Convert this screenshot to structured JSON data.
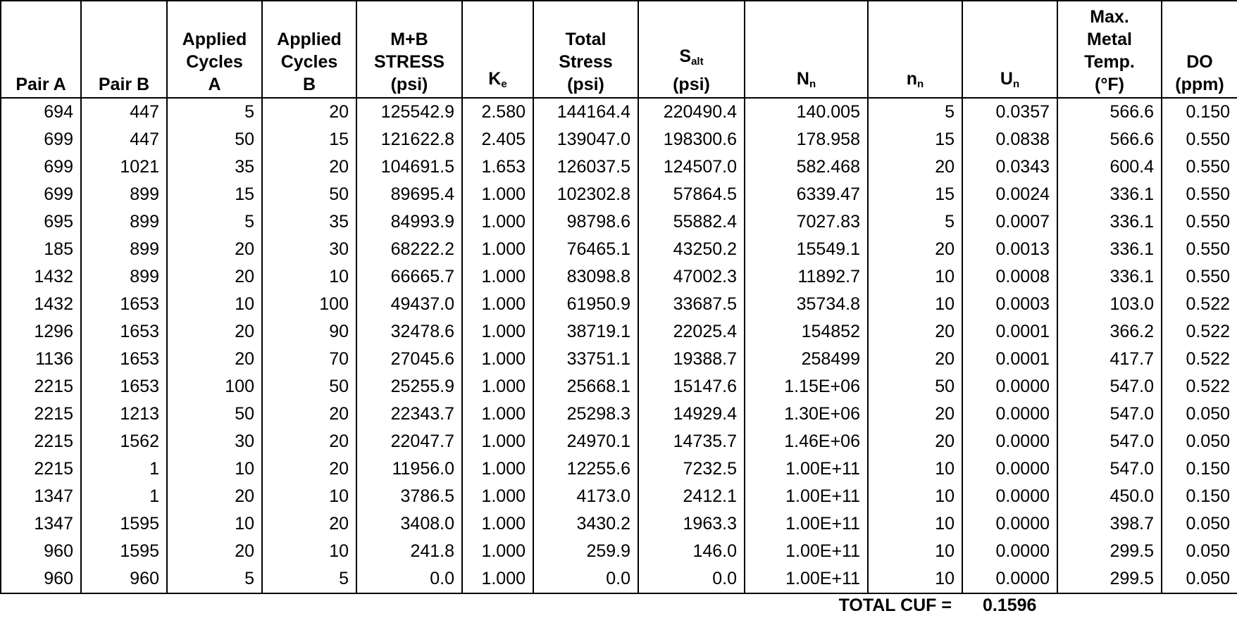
{
  "table": {
    "headers": [
      [
        "Pair A"
      ],
      [
        "Pair B"
      ],
      [
        "Applied",
        "Cycles",
        "A"
      ],
      [
        "Applied",
        "Cycles",
        "B"
      ],
      [
        "M+B",
        "STRESS",
        "(psi)"
      ],
      [
        {
          "base": "K",
          "sub": "e"
        }
      ],
      [
        "Total",
        "Stress",
        "(psi)"
      ],
      [
        {
          "base": "S",
          "sub": "alt"
        },
        "(psi)"
      ],
      [
        {
          "base": "N",
          "sub": "n"
        }
      ],
      [
        {
          "base": "n",
          "sub": "n"
        }
      ],
      [
        {
          "base": "U",
          "sub": "n"
        }
      ],
      [
        "Max.",
        "Metal",
        "Temp.",
        "(°F)"
      ],
      [
        "DO",
        "(ppm)"
      ]
    ],
    "rows": [
      [
        "694",
        "447",
        "5",
        "20",
        "125542.9",
        "2.580",
        "144164.4",
        "220490.4",
        "140.005",
        "5",
        "0.0357",
        "566.6",
        "0.150"
      ],
      [
        "699",
        "447",
        "50",
        "15",
        "121622.8",
        "2.405",
        "139047.0",
        "198300.6",
        "178.958",
        "15",
        "0.0838",
        "566.6",
        "0.550"
      ],
      [
        "699",
        "1021",
        "35",
        "20",
        "104691.5",
        "1.653",
        "126037.5",
        "124507.0",
        "582.468",
        "20",
        "0.0343",
        "600.4",
        "0.550"
      ],
      [
        "699",
        "899",
        "15",
        "50",
        "89695.4",
        "1.000",
        "102302.8",
        "57864.5",
        "6339.47",
        "15",
        "0.0024",
        "336.1",
        "0.550"
      ],
      [
        "695",
        "899",
        "5",
        "35",
        "84993.9",
        "1.000",
        "98798.6",
        "55882.4",
        "7027.83",
        "5",
        "0.0007",
        "336.1",
        "0.550"
      ],
      [
        "185",
        "899",
        "20",
        "30",
        "68222.2",
        "1.000",
        "76465.1",
        "43250.2",
        "15549.1",
        "20",
        "0.0013",
        "336.1",
        "0.550"
      ],
      [
        "1432",
        "899",
        "20",
        "10",
        "66665.7",
        "1.000",
        "83098.8",
        "47002.3",
        "11892.7",
        "10",
        "0.0008",
        "336.1",
        "0.550"
      ],
      [
        "1432",
        "1653",
        "10",
        "100",
        "49437.0",
        "1.000",
        "61950.9",
        "33687.5",
        "35734.8",
        "10",
        "0.0003",
        "103.0",
        "0.522"
      ],
      [
        "1296",
        "1653",
        "20",
        "90",
        "32478.6",
        "1.000",
        "38719.1",
        "22025.4",
        "154852",
        "20",
        "0.0001",
        "366.2",
        "0.522"
      ],
      [
        "1136",
        "1653",
        "20",
        "70",
        "27045.6",
        "1.000",
        "33751.1",
        "19388.7",
        "258499",
        "20",
        "0.0001",
        "417.7",
        "0.522"
      ],
      [
        "2215",
        "1653",
        "100",
        "50",
        "25255.9",
        "1.000",
        "25668.1",
        "15147.6",
        "1.15E+06",
        "50",
        "0.0000",
        "547.0",
        "0.522"
      ],
      [
        "2215",
        "1213",
        "50",
        "20",
        "22343.7",
        "1.000",
        "25298.3",
        "14929.4",
        "1.30E+06",
        "20",
        "0.0000",
        "547.0",
        "0.050"
      ],
      [
        "2215",
        "1562",
        "30",
        "20",
        "22047.7",
        "1.000",
        "24970.1",
        "14735.7",
        "1.46E+06",
        "20",
        "0.0000",
        "547.0",
        "0.050"
      ],
      [
        "2215",
        "1",
        "10",
        "20",
        "11956.0",
        "1.000",
        "12255.6",
        "7232.5",
        "1.00E+11",
        "10",
        "0.0000",
        "547.0",
        "0.150"
      ],
      [
        "1347",
        "1",
        "20",
        "10",
        "3786.5",
        "1.000",
        "4173.0",
        "2412.1",
        "1.00E+11",
        "10",
        "0.0000",
        "450.0",
        "0.150"
      ],
      [
        "1347",
        "1595",
        "10",
        "20",
        "3408.0",
        "1.000",
        "3430.2",
        "1963.3",
        "1.00E+11",
        "10",
        "0.0000",
        "398.7",
        "0.050"
      ],
      [
        "960",
        "1595",
        "20",
        "10",
        "241.8",
        "1.000",
        "259.9",
        "146.0",
        "1.00E+11",
        "10",
        "0.0000",
        "299.5",
        "0.050"
      ],
      [
        "960",
        "960",
        "5",
        "5",
        "0.0",
        "1.000",
        "0.0",
        "0.0",
        "1.00E+11",
        "10",
        "0.0000",
        "299.5",
        "0.050"
      ]
    ],
    "total": {
      "label": "TOTAL CUF =",
      "value": "0.1596"
    }
  }
}
